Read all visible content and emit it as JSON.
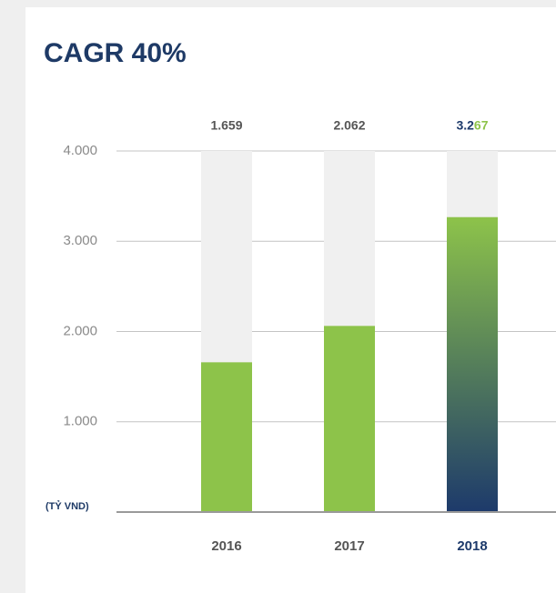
{
  "chart_data": {
    "type": "bar",
    "title": "CAGR 40%",
    "y_unit": "(TỶ VND)",
    "categories": [
      "2016",
      "2017",
      "2018"
    ],
    "values": [
      1659,
      2062,
      3267
    ],
    "value_labels": [
      "1.659",
      "2.062",
      "3.267"
    ],
    "bar_colors": [
      "#8dc34a",
      "#8dc34a",
      [
        "#8dc34a",
        "#1d3a6b"
      ]
    ],
    "track_color": "#f0f0f0",
    "ylim": [
      0,
      4000
    ],
    "yticks": [
      {
        "value": 1000,
        "label": "1.000"
      },
      {
        "value": 2000,
        "label": "2.000"
      },
      {
        "value": 3000,
        "label": "3.000"
      },
      {
        "value": 4000,
        "label": "4.000"
      }
    ],
    "grid": true
  }
}
